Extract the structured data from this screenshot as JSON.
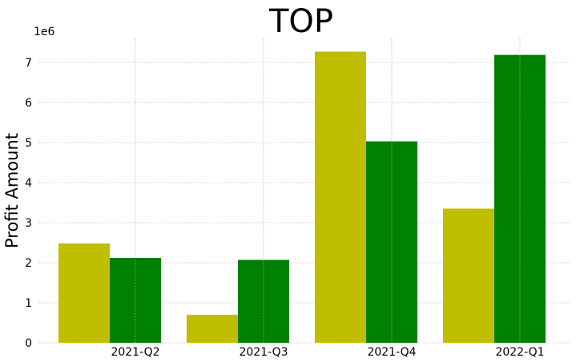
{
  "chart_data": {
    "type": "bar",
    "title": "TOP",
    "ylabel": "Profit Amount",
    "xlabel": "",
    "y_offset_label": "1e6",
    "categories": [
      "2021-Q2",
      "2021-Q3",
      "2021-Q4",
      "2022-Q1"
    ],
    "series": [
      {
        "values": [
          2.48,
          0.7,
          7.27,
          3.35
        ],
        "color": "#bfbf00"
      },
      {
        "values": [
          2.12,
          2.07,
          5.03,
          7.19
        ],
        "color": "#008000"
      }
    ],
    "yticks": [
      0,
      1,
      2,
      3,
      4,
      5,
      6,
      7
    ],
    "ylim": [
      0,
      7.6
    ],
    "grid": true
  }
}
